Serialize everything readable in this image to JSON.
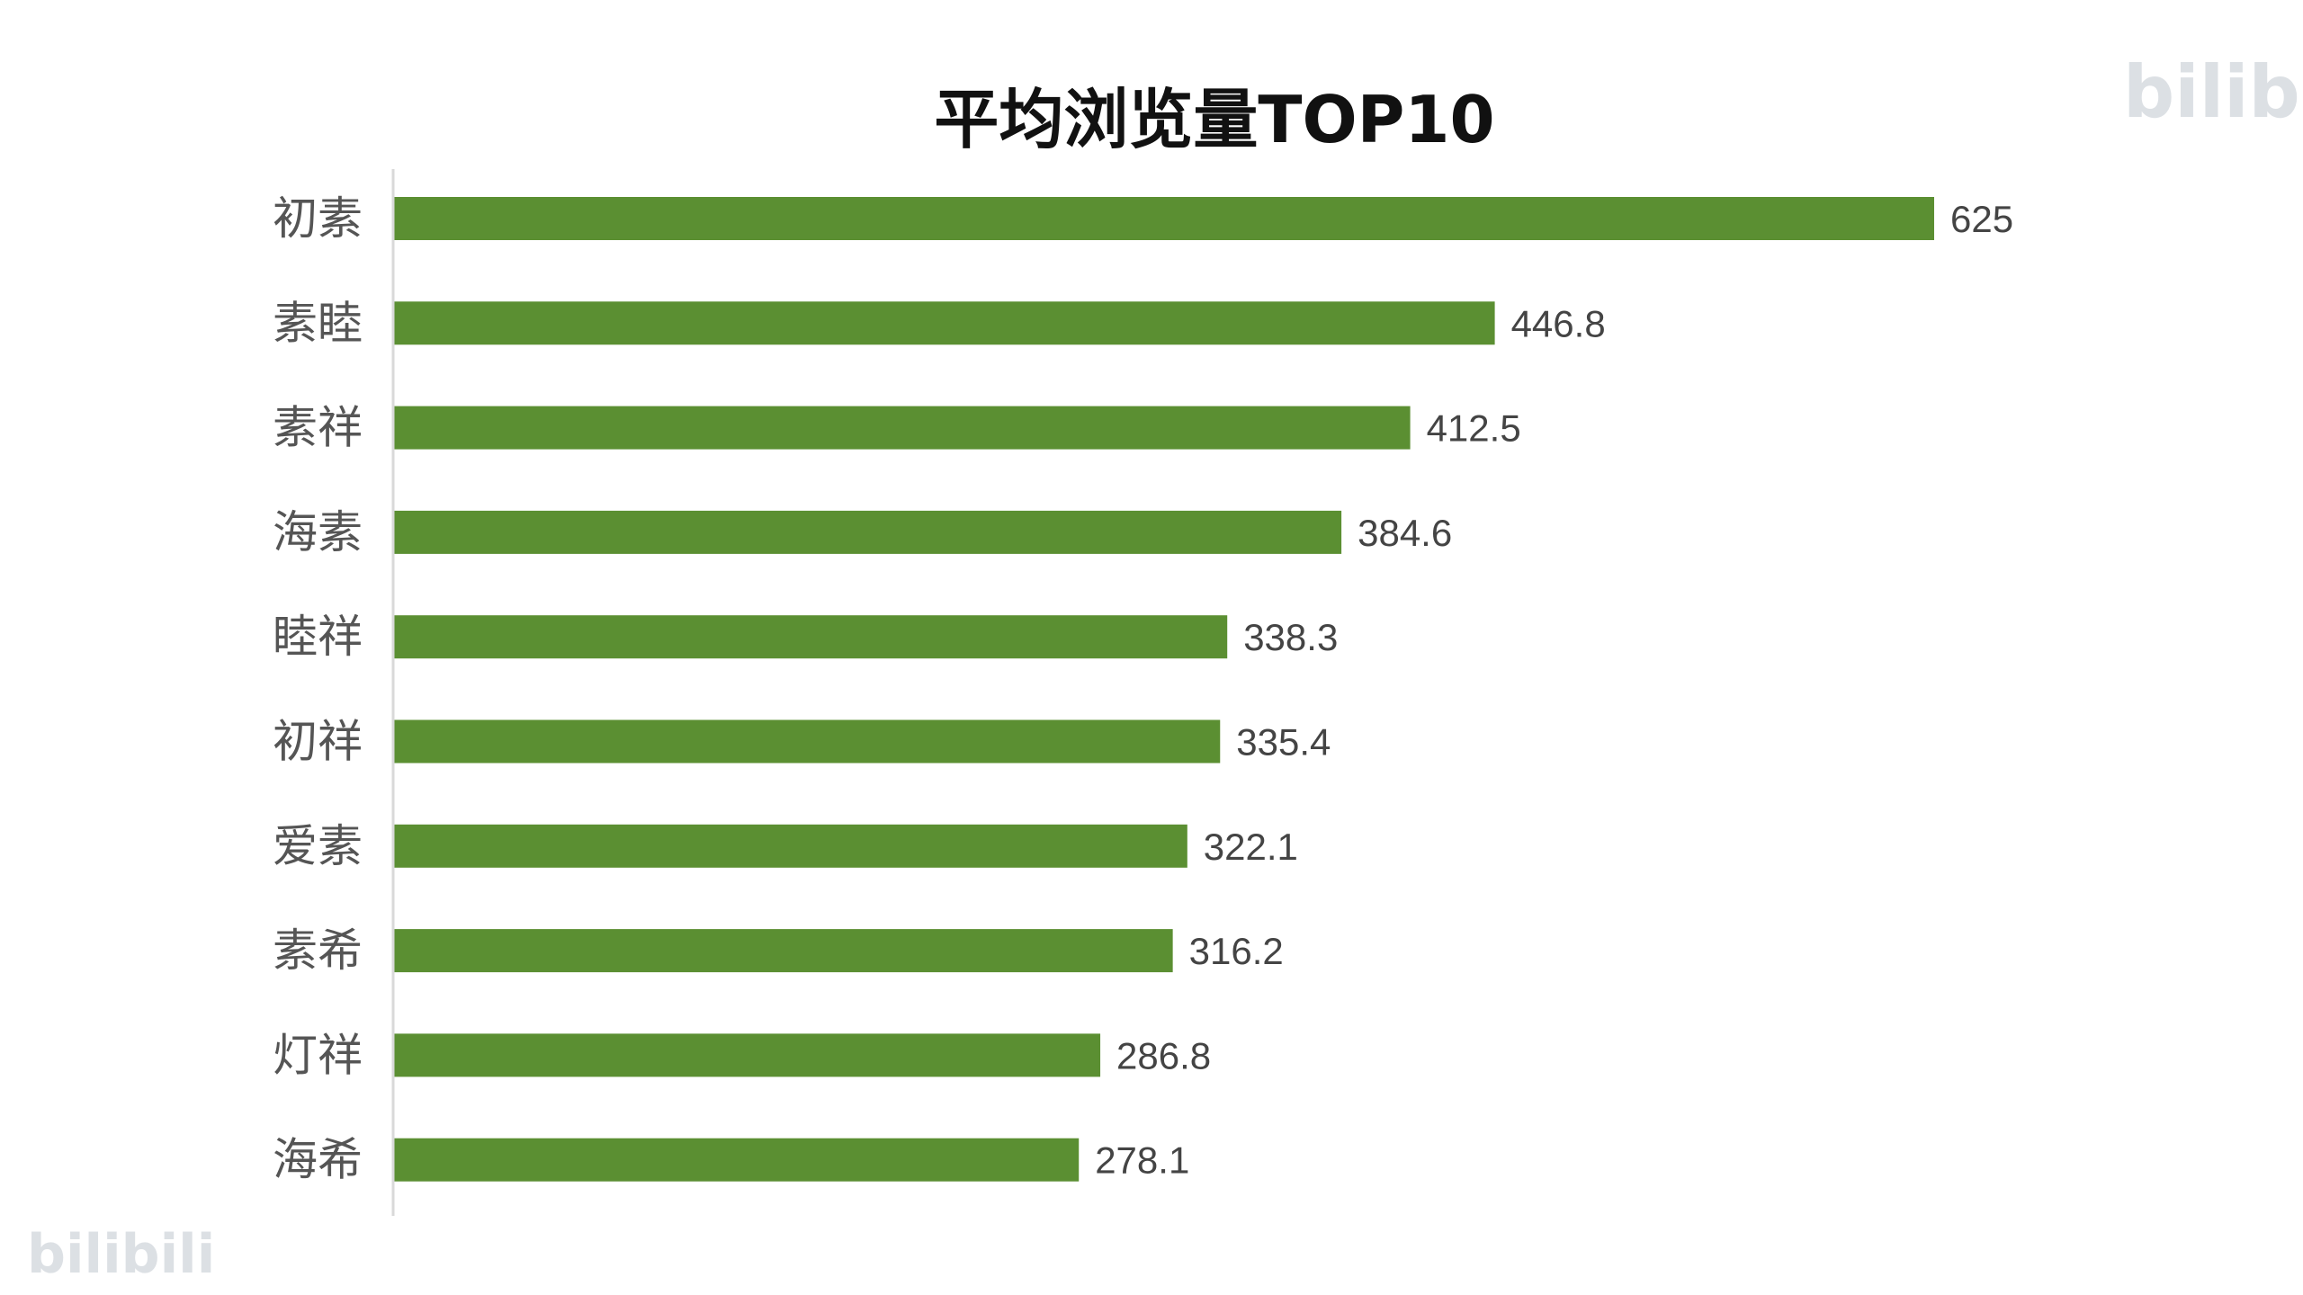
{
  "colors": {
    "bar": "#5b8f32",
    "axis": "#d9d9d9",
    "background": "#ffffff"
  },
  "watermarks": {
    "top_right": "bilibili",
    "bottom_left": "bilibili"
  },
  "chart_data": {
    "type": "bar",
    "orientation": "horizontal",
    "title": "平均浏览量TOP10",
    "xlabel": "",
    "ylabel": "",
    "categories": [
      "初素",
      "素睦",
      "素祥",
      "海素",
      "睦祥",
      "初祥",
      "爱素",
      "素希",
      "灯祥",
      "海希"
    ],
    "values": [
      625,
      446.8,
      412.5,
      384.6,
      338.3,
      335.4,
      322.1,
      316.2,
      286.8,
      278.1
    ],
    "value_labels": [
      "625",
      "446.8",
      "412.5",
      "384.6",
      "338.3",
      "335.4",
      "322.1",
      "316.2",
      "286.8",
      "278.1"
    ],
    "xlim": [
      0,
      625
    ],
    "grid": false,
    "legend": "none",
    "data_labels": true
  }
}
